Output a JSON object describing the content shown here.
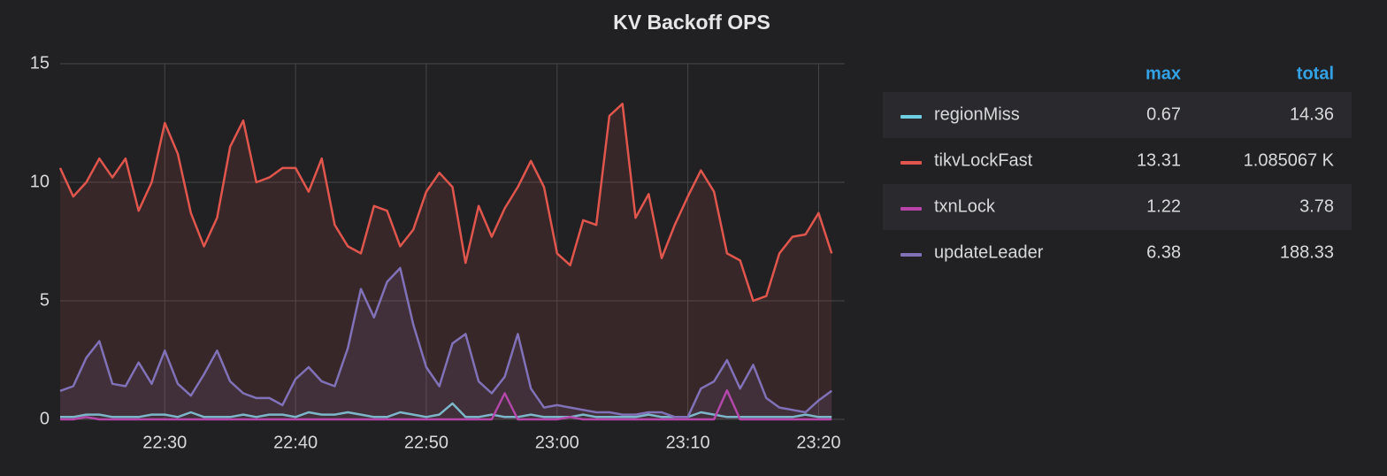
{
  "chart_data": {
    "type": "line",
    "title": "KV Backoff OPS",
    "x": [
      "22:22",
      "22:23",
      "22:24",
      "22:25",
      "22:26",
      "22:27",
      "22:28",
      "22:29",
      "22:30",
      "22:31",
      "22:32",
      "22:33",
      "22:34",
      "22:35",
      "22:36",
      "22:37",
      "22:38",
      "22:39",
      "22:40",
      "22:41",
      "22:42",
      "22:43",
      "22:44",
      "22:45",
      "22:46",
      "22:47",
      "22:48",
      "22:49",
      "22:50",
      "22:51",
      "22:52",
      "22:53",
      "22:54",
      "22:55",
      "22:56",
      "22:57",
      "22:58",
      "22:59",
      "23:00",
      "23:01",
      "23:02",
      "23:03",
      "23:04",
      "23:05",
      "23:06",
      "23:07",
      "23:08",
      "23:09",
      "23:10",
      "23:11",
      "23:12",
      "23:13",
      "23:14",
      "23:15",
      "23:16",
      "23:17",
      "23:18",
      "23:19",
      "23:20",
      "23:21"
    ],
    "xlim": [
      "22:22",
      "23:22"
    ],
    "xticks": [
      "22:30",
      "22:40",
      "22:50",
      "23:00",
      "23:10",
      "23:20"
    ],
    "ylim": [
      0,
      15
    ],
    "yticks": [
      0,
      5,
      10,
      15
    ],
    "grid": true,
    "legend_columns": [
      "max",
      "total"
    ],
    "series": [
      {
        "name": "regionMiss",
        "color": "#6ed0e0",
        "fill": false,
        "max": 0.67,
        "total": 14.36,
        "values": [
          0.1,
          0.1,
          0.2,
          0.2,
          0.1,
          0.1,
          0.1,
          0.2,
          0.2,
          0.1,
          0.3,
          0.1,
          0.1,
          0.1,
          0.2,
          0.1,
          0.2,
          0.2,
          0.1,
          0.3,
          0.2,
          0.2,
          0.3,
          0.2,
          0.1,
          0.1,
          0.3,
          0.2,
          0.1,
          0.2,
          0.67,
          0.1,
          0.1,
          0.2,
          0.1,
          0.1,
          0.2,
          0.1,
          0.1,
          0.1,
          0.2,
          0.1,
          0.1,
          0.1,
          0.1,
          0.2,
          0.1,
          0.1,
          0.1,
          0.3,
          0.2,
          0.1,
          0.1,
          0.1,
          0.1,
          0.1,
          0.1,
          0.2,
          0.1,
          0.1
        ]
      },
      {
        "name": "tikvLockFast",
        "color": "#e0564d",
        "fill": true,
        "max": 13.31,
        "total": {
          "value": 1085.067,
          "label": "1.085067 K"
        },
        "values": [
          10.6,
          9.4,
          10.0,
          11.0,
          10.2,
          11.0,
          8.8,
          10.0,
          12.5,
          11.2,
          8.7,
          7.3,
          8.5,
          11.5,
          12.6,
          10.0,
          10.2,
          10.6,
          10.6,
          9.6,
          11.0,
          8.2,
          7.3,
          7.0,
          9.0,
          8.8,
          7.3,
          8.0,
          9.6,
          10.4,
          9.8,
          6.6,
          9.0,
          7.7,
          8.9,
          9.8,
          10.9,
          9.8,
          7.0,
          6.5,
          8.4,
          8.2,
          12.8,
          13.31,
          8.5,
          9.5,
          6.8,
          8.2,
          9.4,
          10.5,
          9.6,
          7.0,
          6.7,
          5.0,
          5.2,
          7.0,
          7.7,
          7.8,
          8.7,
          7.0
        ]
      },
      {
        "name": "txnLock",
        "color": "#ba43a9",
        "fill": false,
        "max": 1.22,
        "total": 3.78,
        "values": [
          0,
          0,
          0.1,
          0,
          0,
          0,
          0,
          0,
          0,
          0,
          0,
          0,
          0,
          0,
          0,
          0,
          0,
          0,
          0,
          0,
          0,
          0,
          0,
          0,
          0,
          0,
          0,
          0,
          0,
          0,
          0,
          0,
          0,
          0,
          1.1,
          0,
          0,
          0,
          0,
          0.1,
          0,
          0,
          0,
          0,
          0,
          0,
          0,
          0,
          0,
          0,
          0,
          1.22,
          0,
          0,
          0,
          0,
          0,
          0,
          0,
          0
        ]
      },
      {
        "name": "updateLeader",
        "color": "#8071b8",
        "fill": true,
        "max": 6.38,
        "total": 188.33,
        "values": [
          1.2,
          1.4,
          2.6,
          3.3,
          1.5,
          1.4,
          2.4,
          1.5,
          2.9,
          1.5,
          1.0,
          1.9,
          2.9,
          1.6,
          1.1,
          0.9,
          0.9,
          0.6,
          1.7,
          2.2,
          1.6,
          1.4,
          3.0,
          5.5,
          4.3,
          5.8,
          6.38,
          4.0,
          2.2,
          1.4,
          3.2,
          3.6,
          1.6,
          1.1,
          1.8,
          3.6,
          1.3,
          0.5,
          0.6,
          0.5,
          0.4,
          0.3,
          0.3,
          0.2,
          0.2,
          0.3,
          0.3,
          0.1,
          0.1,
          1.3,
          1.6,
          2.5,
          1.3,
          2.3,
          0.9,
          0.5,
          0.4,
          0.3,
          0.8,
          1.2
        ]
      }
    ]
  }
}
